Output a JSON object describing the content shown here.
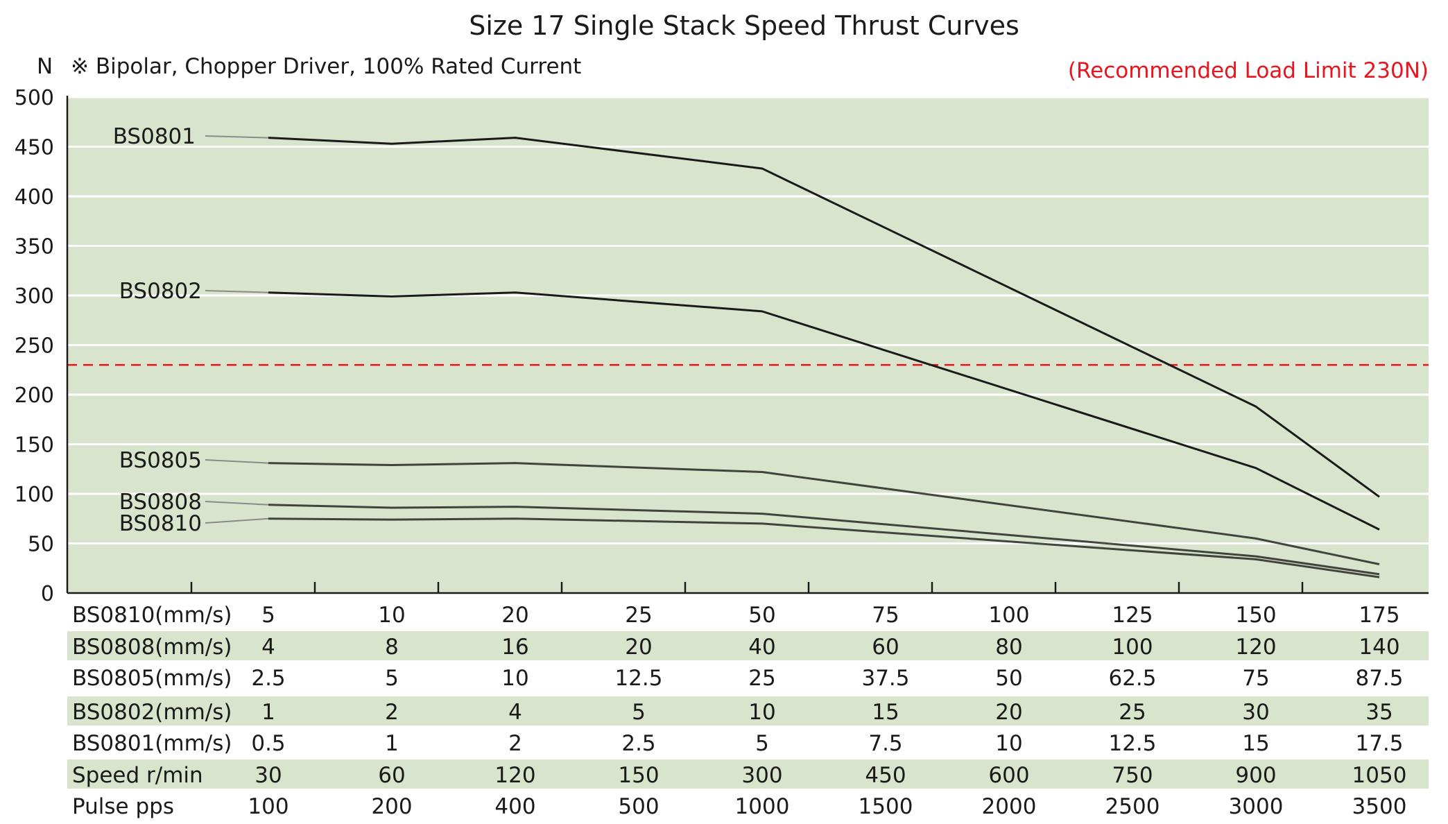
{
  "chart_data": {
    "type": "line",
    "title": "Size 17 Single Stack Speed Thrust Curves",
    "subtitle": "※ Bipolar, Chopper Driver, 100% Rated Current",
    "ylabel": "N",
    "ylim": [
      0,
      500
    ],
    "yticks": [
      0,
      50,
      100,
      150,
      200,
      250,
      300,
      350,
      400,
      450,
      500
    ],
    "grid": true,
    "limit_line": {
      "value": 230,
      "label": "(Recommended Load Limit 230N)",
      "color": "#e8141e"
    },
    "x_index": [
      1,
      2,
      3,
      4,
      5,
      6,
      7,
      8,
      9,
      10
    ],
    "series": [
      {
        "name": "BS0801",
        "values": [
          459,
          453,
          459,
          null,
          428,
          null,
          null,
          null,
          188,
          97
        ]
      },
      {
        "name": "BS0802",
        "values": [
          303,
          299,
          303,
          null,
          284,
          null,
          null,
          null,
          126,
          64
        ]
      },
      {
        "name": "BS0805",
        "values": [
          131,
          129,
          131,
          null,
          122,
          null,
          null,
          null,
          55,
          29
        ]
      },
      {
        "name": "BS0808",
        "values": [
          89,
          86,
          87,
          null,
          80,
          null,
          null,
          null,
          37,
          19
        ]
      },
      {
        "name": "BS0810",
        "values": [
          75,
          74,
          75,
          null,
          70,
          null,
          null,
          null,
          34,
          16
        ]
      }
    ],
    "table": [
      {
        "label": "BS0810(mm/s)",
        "values": [
          "5",
          "10",
          "20",
          "25",
          "50",
          "75",
          "100",
          "125",
          "150",
          "175"
        ]
      },
      {
        "label": "BS0808(mm/s)",
        "values": [
          "4",
          "8",
          "16",
          "20",
          "40",
          "60",
          "80",
          "100",
          "120",
          "140"
        ]
      },
      {
        "label": "BS0805(mm/s)",
        "values": [
          "2.5",
          "5",
          "10",
          "12.5",
          "25",
          "37.5",
          "50",
          "62.5",
          "75",
          "87.5"
        ]
      },
      {
        "label": "BS0802(mm/s)",
        "values": [
          "1",
          "2",
          "4",
          "5",
          "10",
          "15",
          "20",
          "25",
          "30",
          "35"
        ]
      },
      {
        "label": "BS0801(mm/s)",
        "values": [
          "0.5",
          "1",
          "2",
          "2.5",
          "5",
          "7.5",
          "10",
          "12.5",
          "15",
          "17.5"
        ]
      },
      {
        "label": "Speed  r/min",
        "values": [
          "30",
          "60",
          "120",
          "150",
          "300",
          "450",
          "600",
          "750",
          "900",
          "1050"
        ]
      },
      {
        "label": "Pulse  pps",
        "values": [
          "100",
          "200",
          "400",
          "500",
          "1000",
          "1500",
          "2000",
          "2500",
          "3000",
          "3500"
        ]
      }
    ]
  },
  "colors": {
    "plot_bg": "#d9e4cc",
    "band_bg": "#d9e4cc",
    "grid": "#ffffff",
    "curve": "#1a1a1a",
    "leader": "#8a8a8a"
  }
}
